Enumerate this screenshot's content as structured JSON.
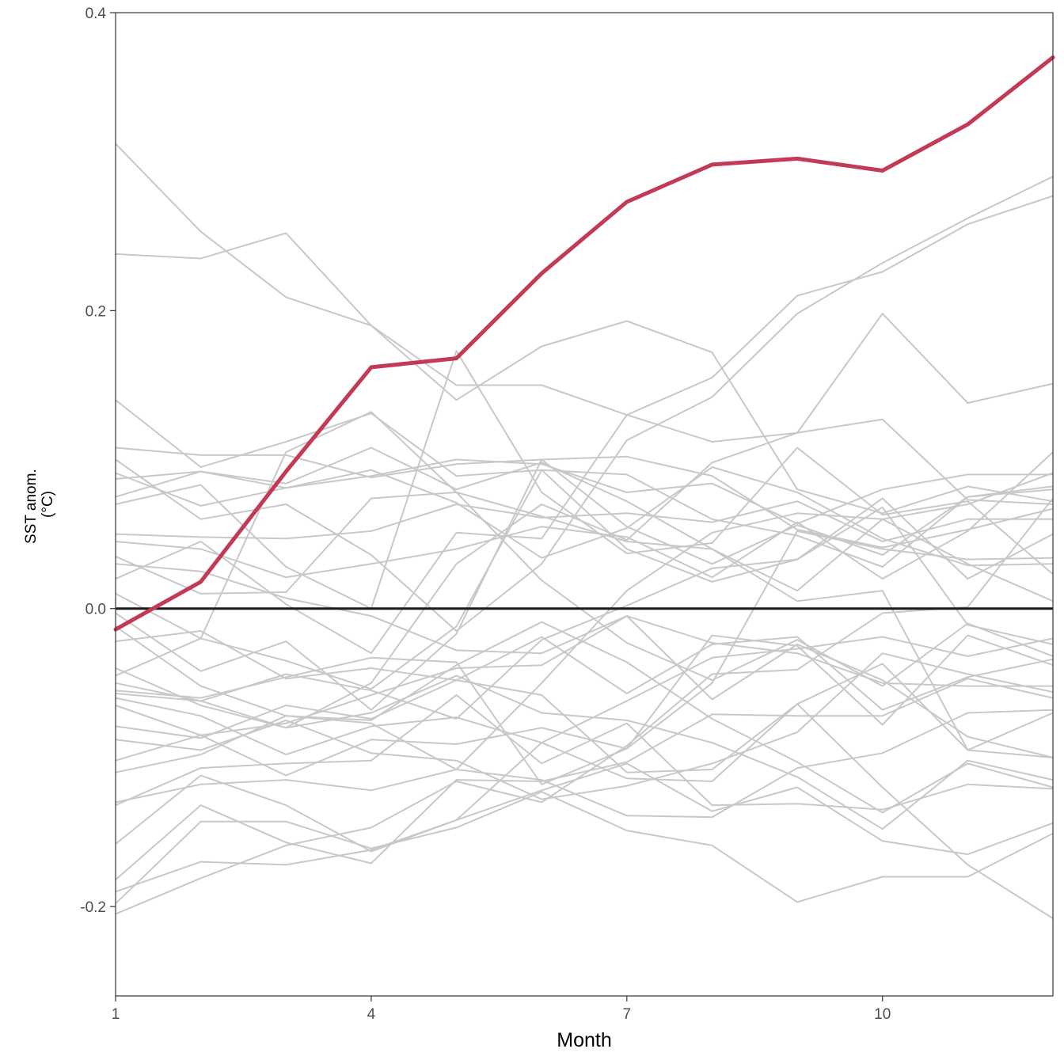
{
  "chart_data": {
    "type": "line",
    "xlabel": "Month",
    "ylabel_lines": [
      "SST anom.",
      "(°C)"
    ],
    "xlim": [
      1,
      12
    ],
    "ylim": [
      -0.26,
      0.4
    ],
    "x_ticks": [
      1,
      4,
      7,
      10
    ],
    "y_ticks": [
      -0.2,
      0.0,
      0.2,
      0.4
    ],
    "y_tick_labels": [
      "-0.2",
      "0.0",
      "0.2",
      "0.4"
    ],
    "x": [
      1,
      2,
      3,
      4,
      5,
      6,
      7,
      8,
      9,
      10,
      11,
      12
    ],
    "colors": {
      "highlight": "#c23a55",
      "background": "#c8c8c8",
      "zero_line": "#1a1a1a"
    },
    "highlight_series": {
      "values": [
        -0.014,
        0.018,
        0.092,
        0.162,
        0.168,
        0.225,
        0.273,
        0.298,
        0.302,
        0.294,
        0.325,
        0.37
      ]
    },
    "background_series": [
      {
        "values": [
          0.312,
          0.253,
          0.209,
          0.19,
          0.15,
          0.15,
          0.13,
          0.112,
          0.118,
          0.127,
          0.073,
          0.07
        ]
      },
      {
        "values": [
          0.238,
          0.235,
          0.252,
          0.19,
          0.14,
          0.176,
          0.193,
          0.172,
          0.08,
          0.064,
          0.082,
          0.072
        ]
      },
      {
        "values": [
          0.14,
          0.095,
          0.112,
          0.131,
          0.089,
          0.093,
          0.09,
          0.06,
          0.049,
          0.028,
          0.075,
          0.08
        ]
      },
      {
        "values": [
          0.108,
          0.103,
          0.103,
          0.088,
          0.097,
          0.1,
          0.102,
          0.089,
          0.053,
          0.041,
          0.053,
          0.067
        ]
      },
      {
        "values": [
          0.091,
          0.069,
          0.081,
          0.089,
          0.1,
          0.097,
          0.078,
          0.084,
          0.057,
          0.08,
          0.09,
          0.09
        ]
      },
      {
        "values": [
          0.087,
          0.092,
          0.084,
          0.108,
          0.08,
          0.098,
          0.072,
          0.04,
          0.012,
          0.06,
          0.07,
          0.091
        ]
      },
      {
        "values": [
          0.075,
          0.092,
          0.081,
          0.093,
          0.071,
          0.034,
          0.054,
          0.095,
          0.078,
          0.047,
          0.029,
          0.03
        ]
      },
      {
        "values": [
          0.05,
          0.048,
          0.047,
          0.052,
          0.07,
          0.061,
          0.064,
          0.058,
          0.072,
          0.045,
          0.06,
          0.06
        ]
      },
      {
        "values": [
          0.045,
          0.04,
          0.021,
          0.03,
          0.04,
          0.055,
          0.048,
          0.021,
          0.058,
          0.02,
          0.052,
          0.105
        ]
      },
      {
        "values": [
          0.035,
          0.01,
          0.011,
          0.074,
          0.078,
          0.019,
          -0.023,
          -0.048,
          -0.021,
          -0.052,
          -0.01,
          -0.032
        ]
      },
      {
        "values": [
          0.03,
          0.025,
          0.007,
          -0.005,
          -0.028,
          -0.03,
          -0.005,
          -0.023,
          -0.03,
          -0.05,
          -0.052,
          -0.052
        ]
      },
      {
        "values": [
          0.01,
          -0.02,
          -0.035,
          -0.054,
          -0.012,
          0.093,
          0.04,
          0.018,
          0.033,
          0.074,
          0.02,
          0.05
        ]
      },
      {
        "values": [
          -0.003,
          -0.042,
          -0.022,
          -0.068,
          -0.017,
          0.1,
          0.055,
          0.03,
          0.056,
          0.036,
          0.075,
          0.082
        ]
      },
      {
        "values": [
          -0.012,
          -0.052,
          -0.072,
          -0.077,
          -0.108,
          -0.05,
          0.012,
          0.051,
          0.064,
          0.06,
          0.03,
          0.005
        ]
      },
      {
        "values": [
          -0.022,
          -0.015,
          -0.047,
          -0.04,
          -0.048,
          -0.058,
          -0.11,
          -0.108,
          -0.064,
          -0.037,
          -0.095,
          -0.07
        ]
      },
      {
        "values": [
          -0.04,
          -0.065,
          -0.08,
          -0.07,
          -0.045,
          -0.07,
          -0.075,
          -0.09,
          -0.113,
          -0.148,
          -0.102,
          -0.115
        ]
      },
      {
        "values": [
          -0.055,
          -0.06,
          -0.046,
          -0.033,
          -0.036,
          -0.118,
          -0.094,
          -0.05,
          0.052,
          0.04,
          0.033,
          0.034
        ]
      },
      {
        "values": [
          -0.057,
          -0.062,
          -0.044,
          -0.055,
          -0.074,
          -0.021,
          0.002,
          0.027,
          0.033,
          0.068,
          -0.011,
          -0.024
        ]
      },
      {
        "values": [
          -0.06,
          -0.072,
          -0.098,
          -0.079,
          -0.073,
          -0.09,
          -0.062,
          -0.033,
          -0.027,
          -0.019,
          -0.032,
          -0.02
        ]
      },
      {
        "values": [
          -0.065,
          -0.085,
          -0.112,
          -0.088,
          -0.091,
          -0.08,
          -0.094,
          -0.018,
          -0.025,
          -0.078,
          -0.018,
          -0.038
        ]
      },
      {
        "values": [
          -0.079,
          -0.087,
          -0.065,
          -0.074,
          -0.048,
          -0.019,
          -0.057,
          -0.024,
          -0.019,
          -0.068,
          -0.046,
          -0.034
        ]
      },
      {
        "values": [
          -0.088,
          -0.095,
          -0.075,
          -0.097,
          -0.102,
          -0.128,
          -0.119,
          -0.104,
          -0.083,
          -0.03,
          -0.044,
          -0.056
        ]
      },
      {
        "values": [
          -0.102,
          -0.085,
          -0.077,
          -0.058,
          -0.04,
          -0.038,
          -0.005,
          -0.061,
          -0.024,
          -0.048,
          -0.086,
          -0.1
        ]
      },
      {
        "values": [
          -0.11,
          -0.098,
          -0.072,
          -0.075,
          -0.038,
          -0.009,
          -0.036,
          -0.074,
          -0.103,
          -0.137,
          -0.104,
          -0.12
        ]
      },
      {
        "values": [
          -0.132,
          -0.107,
          -0.104,
          -0.102,
          -0.058,
          -0.104,
          -0.077,
          -0.132,
          -0.131,
          -0.135,
          -0.118,
          -0.121
        ]
      },
      {
        "values": [
          -0.13,
          -0.118,
          -0.115,
          -0.122,
          -0.108,
          -0.115,
          -0.139,
          -0.14,
          -0.107,
          -0.097,
          -0.07,
          -0.068
        ]
      },
      {
        "values": [
          -0.158,
          -0.112,
          -0.132,
          -0.163,
          -0.142,
          -0.122,
          -0.104,
          -0.136,
          -0.12,
          -0.156,
          -0.165,
          -0.144
        ]
      },
      {
        "values": [
          -0.182,
          -0.132,
          -0.157,
          -0.171,
          -0.115,
          -0.116,
          -0.103,
          -0.071,
          -0.072,
          -0.072,
          -0.047,
          -0.06
        ]
      },
      {
        "values": [
          -0.198,
          -0.143,
          -0.143,
          -0.161,
          -0.147,
          -0.123,
          -0.149,
          -0.159,
          -0.197,
          -0.18,
          -0.18,
          -0.151
        ]
      },
      {
        "values": [
          -0.205,
          -0.181,
          -0.159,
          -0.147,
          -0.116,
          -0.13,
          -0.092,
          -0.044,
          -0.041,
          -0.003,
          0.001,
          0.074
        ]
      },
      {
        "values": [
          -0.19,
          -0.17,
          -0.172,
          -0.162,
          -0.142,
          -0.09,
          -0.114,
          -0.116,
          -0.064,
          -0.12,
          -0.172,
          -0.208
        ]
      },
      {
        "values": [
          -0.045,
          -0.02,
          0.105,
          0.132,
          0.078,
          0.062,
          0.045,
          0.04,
          0.005,
          0.012,
          -0.095,
          -0.1
        ]
      },
      {
        "values": [
          0.02,
          0.045,
          0.003,
          -0.03,
          0.051,
          0.047,
          0.13,
          0.155,
          0.21,
          0.226,
          0.258,
          0.277
        ]
      },
      {
        "values": [
          0.1,
          0.06,
          0.07,
          0.036,
          -0.015,
          0.03,
          0.113,
          0.142,
          0.198,
          0.232,
          0.262,
          0.29
        ]
      },
      {
        "values": [
          -0.05,
          -0.062,
          -0.08,
          -0.05,
          0.03,
          0.07,
          0.046,
          0.098,
          0.118,
          0.198,
          0.138,
          0.151
        ]
      },
      {
        "values": [
          0.07,
          0.083,
          0.028,
          0.0,
          0.173,
          0.078,
          0.037,
          0.044,
          0.108,
          0.063,
          0.072,
          0.023
        ]
      }
    ]
  }
}
